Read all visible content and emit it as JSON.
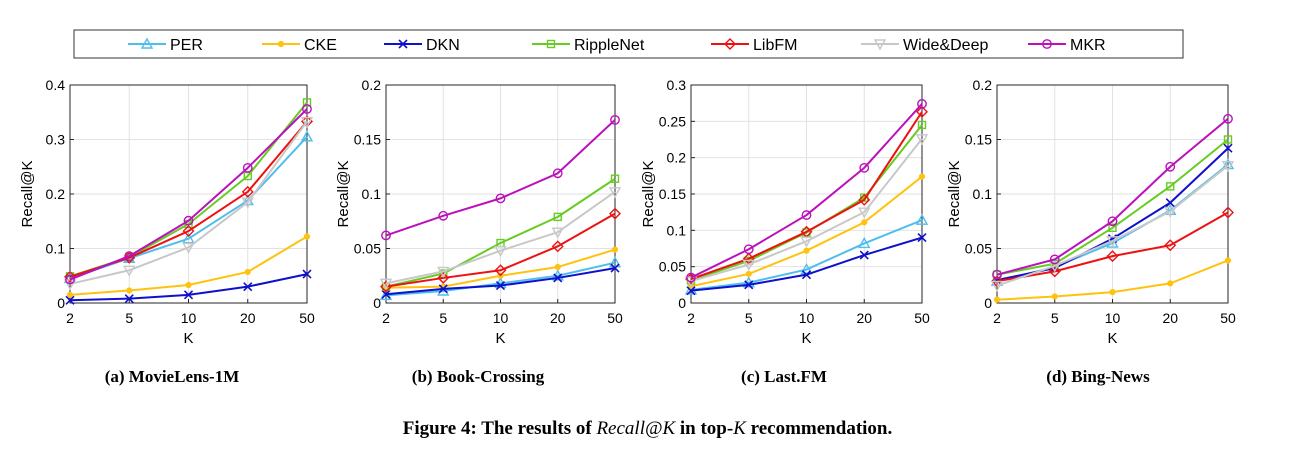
{
  "legend": [
    {
      "name": "PER",
      "color": "#4DBEEE",
      "marker": "triangle"
    },
    {
      "name": "CKE",
      "color": "#FFC20E",
      "marker": "dot"
    },
    {
      "name": "DKN",
      "color": "#1010CC",
      "marker": "x"
    },
    {
      "name": "RippleNet",
      "color": "#66CC22",
      "marker": "square"
    },
    {
      "name": "LibFM",
      "color": "#EE1111",
      "marker": "diamond"
    },
    {
      "name": "Wide&Deep",
      "color": "#C8C8C8",
      "marker": "triangle-down"
    },
    {
      "name": "MKR",
      "color": "#BB11BB",
      "marker": "circle"
    }
  ],
  "caption": {
    "prefix": "Figure 4: The results of ",
    "metric": "Recall@K",
    "middle": " in top-",
    "k": "K",
    "suffix": " recommendation."
  },
  "chart_data": [
    {
      "type": "line",
      "subcaption": "(a) MovieLens-1M",
      "categories": [
        "2",
        "5",
        "10",
        "20",
        "50"
      ],
      "xlabel": "K",
      "ylabel": "Recall@K",
      "ylim": [
        0,
        0.4
      ],
      "yticks": [
        "0",
        "0.1",
        "0.2",
        "0.3",
        "0.4"
      ],
      "series": [
        {
          "name": "PER",
          "values": [
            0.045,
            0.082,
            0.118,
            0.188,
            0.305
          ]
        },
        {
          "name": "CKE",
          "values": [
            0.015,
            0.023,
            0.033,
            0.057,
            0.122
          ]
        },
        {
          "name": "DKN",
          "values": [
            0.005,
            0.008,
            0.015,
            0.03,
            0.053
          ]
        },
        {
          "name": "RippleNet",
          "values": [
            0.049,
            0.084,
            0.145,
            0.233,
            0.368
          ]
        },
        {
          "name": "LibFM",
          "values": [
            0.048,
            0.083,
            0.132,
            0.204,
            0.333
          ]
        },
        {
          "name": "Wide&Deep",
          "values": [
            0.035,
            0.06,
            0.102,
            0.185,
            0.333
          ]
        },
        {
          "name": "MKR",
          "values": [
            0.043,
            0.086,
            0.151,
            0.248,
            0.356
          ]
        }
      ]
    },
    {
      "type": "line",
      "subcaption": "(b) Book-Crossing",
      "categories": [
        "2",
        "5",
        "10",
        "20",
        "50"
      ],
      "xlabel": "K",
      "ylabel": "Recall@K",
      "ylim": [
        0,
        0.2
      ],
      "yticks": [
        "0",
        "0.05",
        "0.1",
        "0.15",
        "0.2"
      ],
      "series": [
        {
          "name": "PER",
          "values": [
            0.007,
            0.011,
            0.018,
            0.025,
            0.037
          ]
        },
        {
          "name": "CKE",
          "values": [
            0.014,
            0.015,
            0.025,
            0.033,
            0.049
          ]
        },
        {
          "name": "DKN",
          "values": [
            0.008,
            0.013,
            0.016,
            0.023,
            0.032
          ]
        },
        {
          "name": "RippleNet",
          "values": [
            0.015,
            0.027,
            0.055,
            0.079,
            0.114
          ]
        },
        {
          "name": "LibFM",
          "values": [
            0.015,
            0.023,
            0.03,
            0.052,
            0.082
          ]
        },
        {
          "name": "Wide&Deep",
          "values": [
            0.018,
            0.029,
            0.048,
            0.065,
            0.102
          ]
        },
        {
          "name": "MKR",
          "values": [
            0.062,
            0.08,
            0.096,
            0.119,
            0.168
          ]
        }
      ]
    },
    {
      "type": "line",
      "subcaption": "(c) Last.FM",
      "categories": [
        "2",
        "5",
        "10",
        "20",
        "50"
      ],
      "xlabel": "K",
      "ylabel": "Recall@K",
      "ylim": [
        0,
        0.3
      ],
      "yticks": [
        "0",
        "0.05",
        "0.1",
        "0.15",
        "0.2",
        "0.25",
        "0.3"
      ],
      "series": [
        {
          "name": "PER",
          "values": [
            0.018,
            0.028,
            0.046,
            0.082,
            0.114
          ]
        },
        {
          "name": "CKE",
          "values": [
            0.023,
            0.04,
            0.072,
            0.111,
            0.174
          ]
        },
        {
          "name": "DKN",
          "values": [
            0.017,
            0.025,
            0.039,
            0.066,
            0.09
          ]
        },
        {
          "name": "RippleNet",
          "values": [
            0.031,
            0.058,
            0.097,
            0.145,
            0.245
          ]
        },
        {
          "name": "LibFM",
          "values": [
            0.033,
            0.061,
            0.098,
            0.142,
            0.263
          ]
        },
        {
          "name": "Wide&Deep",
          "values": [
            0.03,
            0.053,
            0.085,
            0.125,
            0.226
          ]
        },
        {
          "name": "MKR",
          "values": [
            0.035,
            0.074,
            0.121,
            0.186,
            0.274
          ]
        }
      ]
    },
    {
      "type": "line",
      "subcaption": "(d) Bing-News",
      "categories": [
        "2",
        "5",
        "10",
        "20",
        "50"
      ],
      "xlabel": "K",
      "ylabel": "Recall@K",
      "ylim": [
        0,
        0.2
      ],
      "yticks": [
        "0",
        "0.05",
        "0.1",
        "0.15",
        "0.2"
      ],
      "series": [
        {
          "name": "PER",
          "values": [
            0.02,
            0.033,
            0.055,
            0.085,
            0.127
          ]
        },
        {
          "name": "CKE",
          "values": [
            0.003,
            0.006,
            0.01,
            0.018,
            0.039
          ]
        },
        {
          "name": "DKN",
          "values": [
            0.021,
            0.032,
            0.059,
            0.092,
            0.142
          ]
        },
        {
          "name": "RippleNet",
          "values": [
            0.026,
            0.036,
            0.069,
            0.107,
            0.15
          ]
        },
        {
          "name": "LibFM",
          "values": [
            0.02,
            0.029,
            0.043,
            0.053,
            0.083
          ]
        },
        {
          "name": "Wide&Deep",
          "values": [
            0.016,
            0.034,
            0.057,
            0.084,
            0.126
          ]
        },
        {
          "name": "MKR",
          "values": [
            0.026,
            0.04,
            0.075,
            0.125,
            0.169
          ]
        }
      ]
    }
  ]
}
